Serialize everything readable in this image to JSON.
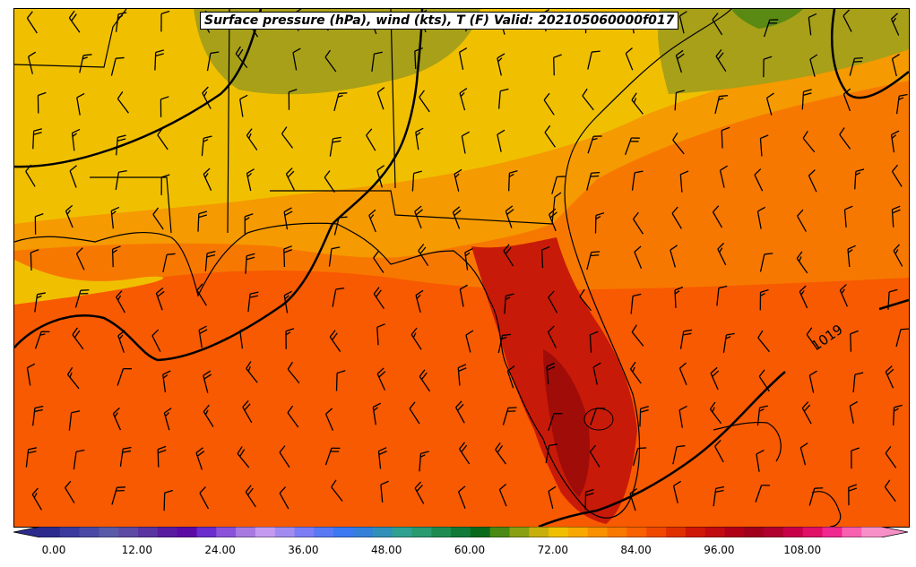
{
  "title": "Surface pressure (hPa), wind (kts), T (F) Valid: 202105060000f017",
  "isobar_label": "1019",
  "colorbar": {
    "ticks": [
      "0.00",
      "12.00",
      "24.00",
      "36.00",
      "48.00",
      "60.00",
      "72.00",
      "84.00",
      "96.00",
      "108.00"
    ],
    "colors": [
      "#2b2b8c",
      "#3a3a9c",
      "#4a4aa6",
      "#5a5aa8",
      "#5d4aa4",
      "#5a34a0",
      "#5a1c9e",
      "#5c0aa4",
      "#6a2ccc",
      "#8a52d8",
      "#a87ae0",
      "#c49af0",
      "#a08cf0",
      "#7c7cf4",
      "#5878f4",
      "#3c78f0",
      "#3480d8",
      "#3290b8",
      "#30a090",
      "#2a9a70",
      "#1e8c50",
      "#127a38",
      "#0a6a1c",
      "#4a8a14",
      "#8aa014",
      "#c8b00c",
      "#f0c000",
      "#f8a800",
      "#f89000",
      "#f87800",
      "#f86000",
      "#f04800",
      "#e03000",
      "#d01808",
      "#c00c10",
      "#b00018",
      "#a0001c",
      "#b00030",
      "#c80048",
      "#e01068",
      "#f02890",
      "#f860b0",
      "#f890c8"
    ]
  },
  "colors": {
    "ocean_warm": "#f75a00",
    "land_hot": "#c81a08",
    "land_warm": "#f59a00",
    "land_mild": "#f0c000",
    "land_cool": "#a8a018"
  }
}
